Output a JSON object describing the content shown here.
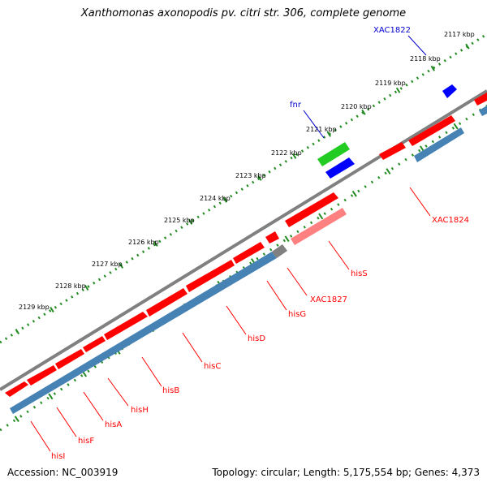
{
  "title": "Xanthomonas axonopodis pv. citri str. 306, complete genome",
  "footer": {
    "accession": "Accession: NC_003919",
    "summary": "Topology: circular; Length: 5,175,554 bp; Genes: 4,373"
  },
  "colors": {
    "forward_gene": "#ff0000",
    "reverse_gene": "#4682b4",
    "backbone": "#808080",
    "ticks": "#228b22",
    "highlight_green": "#22cc22",
    "highlight_blue": "#0000ff",
    "pink_gene": "#ff8080",
    "label_red": "#ff0000",
    "label_blue": "#0000cc"
  },
  "ticks": [
    {
      "label": "2117 kbp"
    },
    {
      "label": "2118 kbp"
    },
    {
      "label": "2119 kbp"
    },
    {
      "label": "2120 kbp"
    },
    {
      "label": "2121 kbp"
    },
    {
      "label": "2122 kbp"
    },
    {
      "label": "2123 kbp"
    },
    {
      "label": "2124 kbp"
    },
    {
      "label": "2125 kbp"
    },
    {
      "label": "2126 kbp"
    },
    {
      "label": "2127 kbp"
    },
    {
      "label": "2128 kbp"
    },
    {
      "label": "2129 kbp"
    }
  ],
  "gene_labels": [
    {
      "name": "XAC1822",
      "color": "blue"
    },
    {
      "name": "fnr",
      "color": "blue"
    },
    {
      "name": "XAC1824",
      "color": "red"
    },
    {
      "name": "hisS",
      "color": "red"
    },
    {
      "name": "XAC1827",
      "color": "red"
    },
    {
      "name": "hisG",
      "color": "red"
    },
    {
      "name": "hisD",
      "color": "red"
    },
    {
      "name": "hisC",
      "color": "red"
    },
    {
      "name": "hisB",
      "color": "red"
    },
    {
      "name": "hisH",
      "color": "red"
    },
    {
      "name": "hisA",
      "color": "red"
    },
    {
      "name": "hisF",
      "color": "red"
    },
    {
      "name": "hisI",
      "color": "red"
    }
  ]
}
